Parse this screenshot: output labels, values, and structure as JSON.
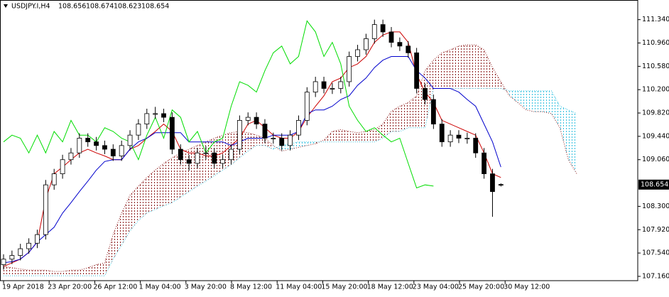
{
  "chart_data": {
    "type": "candlestick",
    "symbol": "USDJPY.I,H4",
    "ylim": [
      107.09,
      111.66
    ],
    "yticks": [
      {
        "value": 107.16,
        "label": "107.160"
      },
      {
        "value": 107.54,
        "label": "107.540"
      },
      {
        "value": 107.92,
        "label": "107.920"
      },
      {
        "value": 108.3,
        "label": "108.300"
      },
      {
        "value": 109.06,
        "label": "109.060"
      },
      {
        "value": 109.44,
        "label": "109.440"
      },
      {
        "value": 109.82,
        "label": "109.820"
      },
      {
        "value": 110.2,
        "label": "110.200"
      },
      {
        "value": 110.58,
        "label": "110.580"
      },
      {
        "value": 110.96,
        "label": "110.960"
      },
      {
        "value": 111.34,
        "label": "111.340"
      }
    ],
    "x_labels": [
      "19 Apr 2018",
      "23 Apr 20:00",
      "26 Apr 12:00",
      "1 May 04:00",
      "3 May 20:00",
      "8 May 12:00",
      "11 May 04:00",
      "15 May 20:00",
      "18 May 12:00",
      "23 May 04:00",
      "25 May 20:00",
      "30 May 12:00"
    ],
    "candles": [
      [
        107.35,
        107.52,
        107.27,
        107.44
      ],
      [
        107.44,
        107.58,
        107.36,
        107.5
      ],
      [
        107.5,
        107.69,
        107.42,
        107.61
      ],
      [
        107.61,
        107.78,
        107.53,
        107.7
      ],
      [
        107.7,
        107.92,
        107.62,
        107.84
      ],
      [
        107.84,
        108.73,
        107.76,
        108.65
      ],
      [
        108.65,
        108.91,
        108.57,
        108.83
      ],
      [
        108.83,
        109.14,
        108.75,
        109.06
      ],
      [
        109.06,
        109.25,
        108.98,
        109.17
      ],
      [
        109.17,
        109.49,
        109.09,
        109.41
      ],
      [
        109.41,
        109.49,
        109.27,
        109.35
      ],
      [
        109.35,
        109.43,
        109.21,
        109.29
      ],
      [
        109.29,
        109.37,
        109.15,
        109.23
      ],
      [
        109.23,
        109.31,
        109.04,
        109.12
      ],
      [
        109.12,
        109.37,
        109.04,
        109.29
      ],
      [
        109.29,
        109.54,
        109.21,
        109.46
      ],
      [
        109.46,
        109.72,
        109.38,
        109.64
      ],
      [
        109.64,
        109.89,
        109.56,
        109.81
      ],
      [
        109.81,
        109.92,
        109.73,
        109.81
      ],
      [
        109.81,
        109.89,
        109.67,
        109.75
      ],
      [
        109.75,
        109.83,
        109.15,
        109.23
      ],
      [
        109.23,
        109.31,
        108.98,
        109.06
      ],
      [
        109.06,
        109.14,
        108.88,
        109.0
      ],
      [
        109.0,
        109.25,
        108.92,
        109.17
      ],
      [
        109.17,
        109.28,
        109.06,
        109.17
      ],
      [
        109.17,
        109.25,
        108.92,
        109.0
      ],
      [
        109.0,
        109.14,
        108.92,
        109.06
      ],
      [
        109.06,
        109.31,
        108.98,
        109.23
      ],
      [
        109.23,
        109.78,
        109.15,
        109.7
      ],
      [
        109.7,
        109.83,
        109.62,
        109.75
      ],
      [
        109.75,
        109.83,
        109.56,
        109.64
      ],
      [
        109.64,
        109.72,
        109.33,
        109.41
      ],
      [
        109.41,
        109.5,
        109.32,
        109.41
      ],
      [
        109.41,
        109.49,
        109.21,
        109.29
      ],
      [
        109.29,
        109.54,
        109.21,
        109.46
      ],
      [
        109.46,
        109.78,
        109.38,
        109.7
      ],
      [
        109.7,
        110.24,
        109.62,
        110.16
      ],
      [
        110.16,
        110.41,
        110.08,
        110.33
      ],
      [
        110.33,
        110.41,
        110.14,
        110.22
      ],
      [
        110.22,
        110.31,
        110.13,
        110.22
      ],
      [
        110.22,
        110.41,
        110.14,
        110.33
      ],
      [
        110.33,
        110.82,
        110.25,
        110.74
      ],
      [
        110.74,
        110.93,
        110.66,
        110.85
      ],
      [
        110.85,
        111.11,
        110.77,
        111.03
      ],
      [
        111.03,
        111.34,
        110.95,
        111.26
      ],
      [
        111.26,
        111.34,
        111.06,
        111.14
      ],
      [
        111.14,
        111.22,
        110.89,
        110.97
      ],
      [
        110.97,
        111.05,
        110.83,
        110.91
      ],
      [
        110.91,
        110.99,
        110.72,
        110.8
      ],
      [
        110.8,
        110.88,
        110.14,
        110.22
      ],
      [
        110.22,
        110.3,
        109.96,
        110.04
      ],
      [
        110.04,
        110.12,
        109.56,
        109.64
      ],
      [
        109.64,
        109.72,
        109.27,
        109.35
      ],
      [
        109.35,
        109.54,
        109.27,
        109.46
      ],
      [
        109.46,
        109.54,
        109.33,
        109.41
      ],
      [
        109.41,
        109.5,
        109.32,
        109.41
      ],
      [
        109.41,
        109.49,
        109.09,
        109.17
      ],
      [
        109.17,
        109.25,
        108.75,
        108.83
      ],
      [
        108.83,
        108.91,
        108.13,
        108.54
      ],
      [
        108.656,
        108.674,
        108.623,
        108.654
      ]
    ],
    "bull_color": "#ffffff",
    "bear_color": "#000000",
    "overlays": [
      {
        "color": "#cc0000",
        "values": [
          107.32,
          107.38,
          107.44,
          107.55,
          107.72,
          108.42,
          108.83,
          108.94,
          109.06,
          109.17,
          109.23,
          109.17,
          109.12,
          109.06,
          109.06,
          109.23,
          109.29,
          109.41,
          109.52,
          109.64,
          109.52,
          109.23,
          109.17,
          109.17,
          109.12,
          109.12,
          109.17,
          109.29,
          109.41,
          109.64,
          109.7,
          109.58,
          109.46,
          109.41,
          109.41,
          109.52,
          109.75,
          109.93,
          110.1,
          110.33,
          110.39,
          110.56,
          110.62,
          110.74,
          110.97,
          111.09,
          111.14,
          111.14,
          110.97,
          110.45,
          110.16,
          109.99,
          109.7,
          109.64,
          109.58,
          109.52,
          109.46,
          109.17,
          108.83,
          108.77
        ]
      },
      {
        "color": "#0000cc",
        "values": [
          107.38,
          107.4,
          107.44,
          107.55,
          107.72,
          107.84,
          107.96,
          108.19,
          108.36,
          108.54,
          108.71,
          108.89,
          109.03,
          109.06,
          109.06,
          109.23,
          109.35,
          109.41,
          109.5,
          109.5,
          109.5,
          109.5,
          109.35,
          109.35,
          109.35,
          109.35,
          109.35,
          109.29,
          109.35,
          109.41,
          109.41,
          109.41,
          109.46,
          109.46,
          109.46,
          109.52,
          109.81,
          109.87,
          109.87,
          109.93,
          110.04,
          110.1,
          110.27,
          110.39,
          110.56,
          110.68,
          110.74,
          110.74,
          110.74,
          110.51,
          110.39,
          110.22,
          110.22,
          110.22,
          110.16,
          110.04,
          109.93,
          109.64,
          109.35,
          108.94
        ]
      },
      {
        "color": "#00dd00",
        "values": [
          109.35,
          109.46,
          109.41,
          109.17,
          109.46,
          109.17,
          109.52,
          109.35,
          109.7,
          109.46,
          109.46,
          109.35,
          109.58,
          109.52,
          109.41,
          109.35,
          109.06,
          109.46,
          109.75,
          109.41,
          109.87,
          109.75,
          109.35,
          109.52,
          109.17,
          109.35,
          109.41,
          109.93,
          110.33,
          110.27,
          110.16,
          110.51,
          110.8,
          110.91,
          110.62,
          110.74,
          111.32,
          111.14,
          110.74,
          110.97,
          110.62,
          109.93,
          109.7,
          109.52,
          109.58,
          109.46,
          109.35,
          109.41,
          109.0,
          108.6,
          108.65,
          108.63,
          null,
          null,
          null,
          null,
          null,
          null,
          null,
          null
        ]
      }
    ],
    "cloud": {
      "up_color": "#8b1a1a",
      "down_color": "#30c0e0",
      "span_a": [
        107.32,
        107.3,
        107.28,
        107.26,
        107.26,
        107.26,
        107.24,
        107.24,
        107.26,
        107.26,
        107.3,
        107.35,
        107.38,
        107.84,
        108.19,
        108.48,
        108.63,
        108.77,
        108.89,
        109.0,
        109.09,
        109.17,
        109.23,
        109.29,
        109.35,
        109.41,
        109.46,
        109.5,
        109.52,
        109.5,
        109.46,
        109.41,
        109.29,
        109.2,
        109.23,
        109.26,
        109.29,
        109.32,
        109.38,
        109.52,
        109.55,
        109.52,
        109.5,
        109.52,
        109.55,
        109.64,
        109.85,
        109.93,
        109.99,
        110.1,
        110.51,
        110.68,
        110.8,
        110.85,
        110.91,
        110.93,
        110.93,
        110.85,
        110.56,
        110.33,
        110.1,
        109.99,
        109.87,
        109.84,
        109.84,
        109.81,
        109.58,
        109.06,
        108.83
      ],
      "span_b": [
        107.17,
        107.17,
        107.17,
        107.17,
        107.17,
        107.17,
        107.17,
        107.17,
        107.17,
        107.17,
        107.17,
        107.17,
        107.17,
        107.44,
        107.67,
        107.9,
        108.07,
        108.19,
        108.25,
        108.31,
        108.36,
        108.45,
        108.54,
        108.63,
        108.71,
        108.8,
        108.89,
        108.98,
        109.09,
        109.2,
        109.29,
        109.29,
        109.23,
        109.29,
        109.32,
        109.35,
        109.35,
        109.35,
        109.35,
        109.35,
        109.35,
        109.35,
        109.35,
        109.35,
        109.35,
        109.41,
        109.52,
        109.52,
        109.58,
        109.58,
        109.58,
        110.22,
        110.22,
        110.22,
        110.22,
        110.22,
        110.22,
        110.22,
        110.22,
        110.22,
        110.18,
        110.18,
        110.18,
        110.18,
        110.18,
        110.18,
        109.93,
        109.87,
        109.81
      ]
    }
  }
}
